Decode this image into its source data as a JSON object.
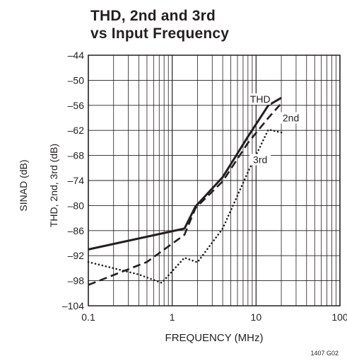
{
  "chart_data": {
    "type": "line",
    "title_lines": [
      "THD, 2nd and 3rd",
      "vs Input Frequency"
    ],
    "xlabel": "FREQUENCY (MHz)",
    "ylabel": "THD, 2nd, 3rd (dB)",
    "ylabel_outer": "SINAD (dB)",
    "x_scale": "log",
    "xlim": [
      0.1,
      100
    ],
    "ylim": [
      -104,
      -44
    ],
    "x_tick_labels": [
      "0.1",
      "1",
      "10",
      "100"
    ],
    "x_ticks": [
      0.1,
      1,
      10,
      100
    ],
    "y_ticks": [
      -44,
      -50,
      -56,
      -62,
      -68,
      -74,
      -80,
      -86,
      -92,
      -98,
      -104
    ],
    "y_tick_labels": [
      "–44",
      "–50",
      "–56",
      "–62",
      "–68",
      "–74",
      "–80",
      "–86",
      "–92",
      "–98",
      "–104"
    ],
    "grid": true,
    "series": [
      {
        "name": "THD",
        "style": "solid",
        "x": [
          0.1,
          1.4,
          1.9,
          4,
          8,
          14,
          20
        ],
        "y": [
          -90.5,
          -85.5,
          -80.2,
          -73.2,
          -63.5,
          -56,
          -54.2
        ]
      },
      {
        "name": "2nd",
        "style": "dashed",
        "x": [
          0.1,
          0.5,
          1.4,
          1.9,
          4,
          8,
          14,
          20
        ],
        "y": [
          -99,
          -93.5,
          -87,
          -80.6,
          -74.2,
          -65,
          -59,
          -55.5
        ]
      },
      {
        "name": "3rd",
        "style": "dotted",
        "x": [
          0.1,
          0.4,
          0.75,
          1.4,
          2,
          4,
          8,
          14,
          20
        ],
        "y": [
          -93.5,
          -96.5,
          -98.5,
          -92.5,
          -93.6,
          -85.5,
          -72,
          -61.8,
          -62.5
        ]
      }
    ],
    "figure_id": "1407 G02"
  }
}
